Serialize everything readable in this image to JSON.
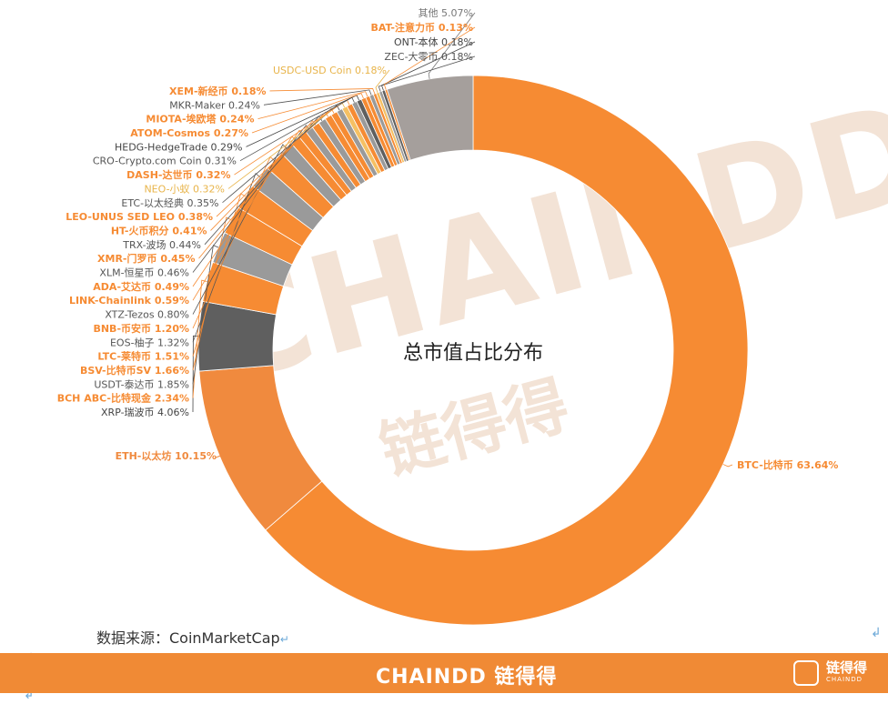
{
  "chart_data": {
    "type": "pie",
    "donut": true,
    "title": "总市值占比分布",
    "slices": [
      {
        "label": "BTC-比特币 63.64%",
        "value": 63.64,
        "color": "#f68b33",
        "label_color": "#f68b33"
      },
      {
        "label": "ETH-以太坊 10.15%",
        "value": 10.15,
        "color": "#f08a3e",
        "label_color": "#f08a3e"
      },
      {
        "label": "XRP-瑞波币 4.06%",
        "value": 4.06,
        "color": "#5f5f5f",
        "label_color": "#444444"
      },
      {
        "label": "BCH ABC-比特现金 2.34%",
        "value": 2.34,
        "color": "#f68b33",
        "label_color": "#f68b33"
      },
      {
        "label": "USDT-泰达币 1.85%",
        "value": 1.85,
        "color": "#9a9a9a",
        "label_color": "#555555"
      },
      {
        "label": "BSV-比特币SV 1.66%",
        "value": 1.66,
        "color": "#f68b33",
        "label_color": "#f68b33"
      },
      {
        "label": "LTC-莱特币 1.51%",
        "value": 1.51,
        "color": "#f68b33",
        "label_color": "#f68b33"
      },
      {
        "label": "EOS-柚子 1.32%",
        "value": 1.32,
        "color": "#9a9a9a",
        "label_color": "#555555"
      },
      {
        "label": "BNB-币安币 1.20%",
        "value": 1.2,
        "color": "#f68b33",
        "label_color": "#f68b33"
      },
      {
        "label": "XTZ-Tezos 0.80%",
        "value": 0.8,
        "color": "#9a9a9a",
        "label_color": "#555555"
      },
      {
        "label": "LINK-Chainlink 0.59%",
        "value": 0.59,
        "color": "#f68b33",
        "label_color": "#f68b33"
      },
      {
        "label": "ADA-艾达币 0.49%",
        "value": 0.49,
        "color": "#f68b33",
        "label_color": "#f68b33"
      },
      {
        "label": "XLM-恒星币 0.46%",
        "value": 0.46,
        "color": "#9a9a9a",
        "label_color": "#555555"
      },
      {
        "label": "XMR-门罗币 0.45%",
        "value": 0.45,
        "color": "#f68b33",
        "label_color": "#f68b33"
      },
      {
        "label": "TRX-波场 0.44%",
        "value": 0.44,
        "color": "#9a9a9a",
        "label_color": "#555555"
      },
      {
        "label": "HT-火币积分 0.41%",
        "value": 0.41,
        "color": "#f68b33",
        "label_color": "#f68b33"
      },
      {
        "label": "LEO-UNUS SED LEO 0.38%",
        "value": 0.38,
        "color": "#f68b33",
        "label_color": "#f68b33"
      },
      {
        "label": "ETC-以太经典 0.35%",
        "value": 0.35,
        "color": "#9a9a9a",
        "label_color": "#555555"
      },
      {
        "label": "NEO-小蚁 0.32%",
        "value": 0.32,
        "color": "#f5c063",
        "label_color": "#e8b44a"
      },
      {
        "label": "DASH-达世币 0.32%",
        "value": 0.32,
        "color": "#f68b33",
        "label_color": "#f68b33"
      },
      {
        "label": "CRO-Crypto.com Coin 0.31%",
        "value": 0.31,
        "color": "#9a9a9a",
        "label_color": "#555555"
      },
      {
        "label": "HEDG-HedgeTrade 0.29%",
        "value": 0.29,
        "color": "#5f5f5f",
        "label_color": "#444444"
      },
      {
        "label": "ATOM-Cosmos 0.27%",
        "value": 0.27,
        "color": "#f68b33",
        "label_color": "#f68b33"
      },
      {
        "label": "MIOTA-埃欧塔 0.24%",
        "value": 0.24,
        "color": "#f68b33",
        "label_color": "#f68b33"
      },
      {
        "label": "MKR-Maker 0.24%",
        "value": 0.24,
        "color": "#9a9a9a",
        "label_color": "#555555"
      },
      {
        "label": "XEM-新经币 0.18%",
        "value": 0.18,
        "color": "#f68b33",
        "label_color": "#f68b33"
      },
      {
        "label": "USDC-USD Coin 0.18%",
        "value": 0.18,
        "color": "#f5c063",
        "label_color": "#e8b44a"
      },
      {
        "label": "ZEC-大零币 0.18%",
        "value": 0.18,
        "color": "#9a9a9a",
        "label_color": "#555555"
      },
      {
        "label": "ONT-本体 0.18%",
        "value": 0.18,
        "color": "#5f5f5f",
        "label_color": "#444444"
      },
      {
        "label": "BAT-注意力币 0.13%",
        "value": 0.13,
        "color": "#f68b33",
        "label_color": "#f68b33"
      },
      {
        "label": "其他 5.07%",
        "value": 5.07,
        "color": "#a59f9c",
        "label_color": "#777777"
      }
    ]
  },
  "source_text": "数据来源：CoinMarketCap",
  "watermark": {
    "brand_en": "CHAINDD",
    "brand_cn": "链得得"
  },
  "footer": {
    "brand": "CHAINDD 链得得",
    "logo_cn": "链得得",
    "logo_en": "CHAINDD"
  },
  "colors": {
    "accent": "#f68b33",
    "footer_bg": "#f08a35"
  }
}
